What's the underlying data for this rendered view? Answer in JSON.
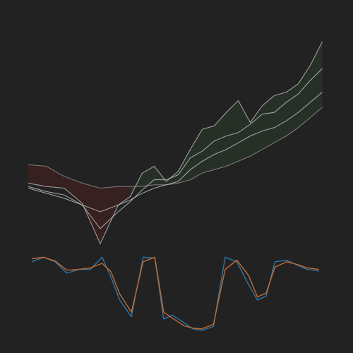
{
  "chart_data": [
    {
      "type": "area",
      "title": "",
      "xlabel": "",
      "ylabel": "",
      "grid": false,
      "legend": "none",
      "x_range": [
        0,
        100
      ],
      "y_range": [
        0,
        100
      ],
      "colors": {
        "background": "#222222",
        "line": "#bdbdbd",
        "fill_down": "#3a2020",
        "fill_up": "#283228"
      },
      "x": [
        0,
        6,
        12,
        18,
        24,
        30,
        34,
        38,
        42,
        46,
        50,
        54,
        58,
        62,
        66,
        70,
        74,
        78,
        82,
        86,
        90,
        94,
        98
      ],
      "series": [
        {
          "values": [
            18,
            16,
            15,
            6,
            -18,
            5,
            10,
            24,
            28,
            19,
            25,
            38,
            50,
            52,
            60,
            67,
            54,
            64,
            70,
            72,
            77,
            88,
            102
          ]
        },
        {
          "values": [
            16,
            13,
            11,
            5,
            -9,
            1,
            7,
            14,
            20,
            20,
            23,
            33,
            37,
            43,
            46,
            48,
            53,
            59,
            60,
            66,
            71,
            79,
            86
          ]
        },
        {
          "values": [
            15,
            12,
            9,
            5,
            1,
            5,
            8,
            12,
            15,
            17,
            19,
            26,
            31,
            35,
            38,
            42,
            46,
            49,
            51,
            55,
            60,
            66,
            72
          ]
        },
        {
          "values": [
            29,
            28,
            22,
            18,
            15,
            16,
            16,
            16,
            17,
            17,
            18,
            20,
            24,
            26,
            28,
            31,
            34,
            38,
            42,
            46,
            51,
            57,
            63
          ]
        }
      ]
    },
    {
      "type": "line",
      "title": "",
      "xlabel": "",
      "ylabel": "",
      "grid": false,
      "legend": "none",
      "x_range": [
        0,
        100
      ],
      "y_range": [
        0,
        100
      ],
      "colors": {
        "background": "#222222",
        "series": [
          "#2f76a9",
          "#c46a2e"
        ]
      },
      "x": [
        0,
        4,
        8,
        12,
        16,
        20,
        24,
        27,
        30,
        34,
        38,
        42,
        45,
        48,
        52,
        55,
        58,
        62,
        66,
        70,
        74,
        77,
        80,
        83,
        87,
        91,
        94,
        98
      ],
      "series": [
        {
          "values": [
            90,
            96,
            90,
            75,
            80,
            80,
            96,
            70,
            40,
            18,
            96,
            95,
            15,
            20,
            10,
            2,
            0,
            5,
            96,
            90,
            60,
            40,
            45,
            90,
            92,
            85,
            80,
            78
          ],
          "color": "#2f76a9"
        },
        {
          "values": [
            94,
            96,
            91,
            79,
            80,
            82,
            88,
            77,
            48,
            24,
            90,
            96,
            24,
            16,
            6,
            3,
            2,
            8,
            80,
            92,
            72,
            44,
            49,
            83,
            90,
            86,
            82,
            80
          ],
          "color": "#c46a2e"
        }
      ]
    }
  ]
}
